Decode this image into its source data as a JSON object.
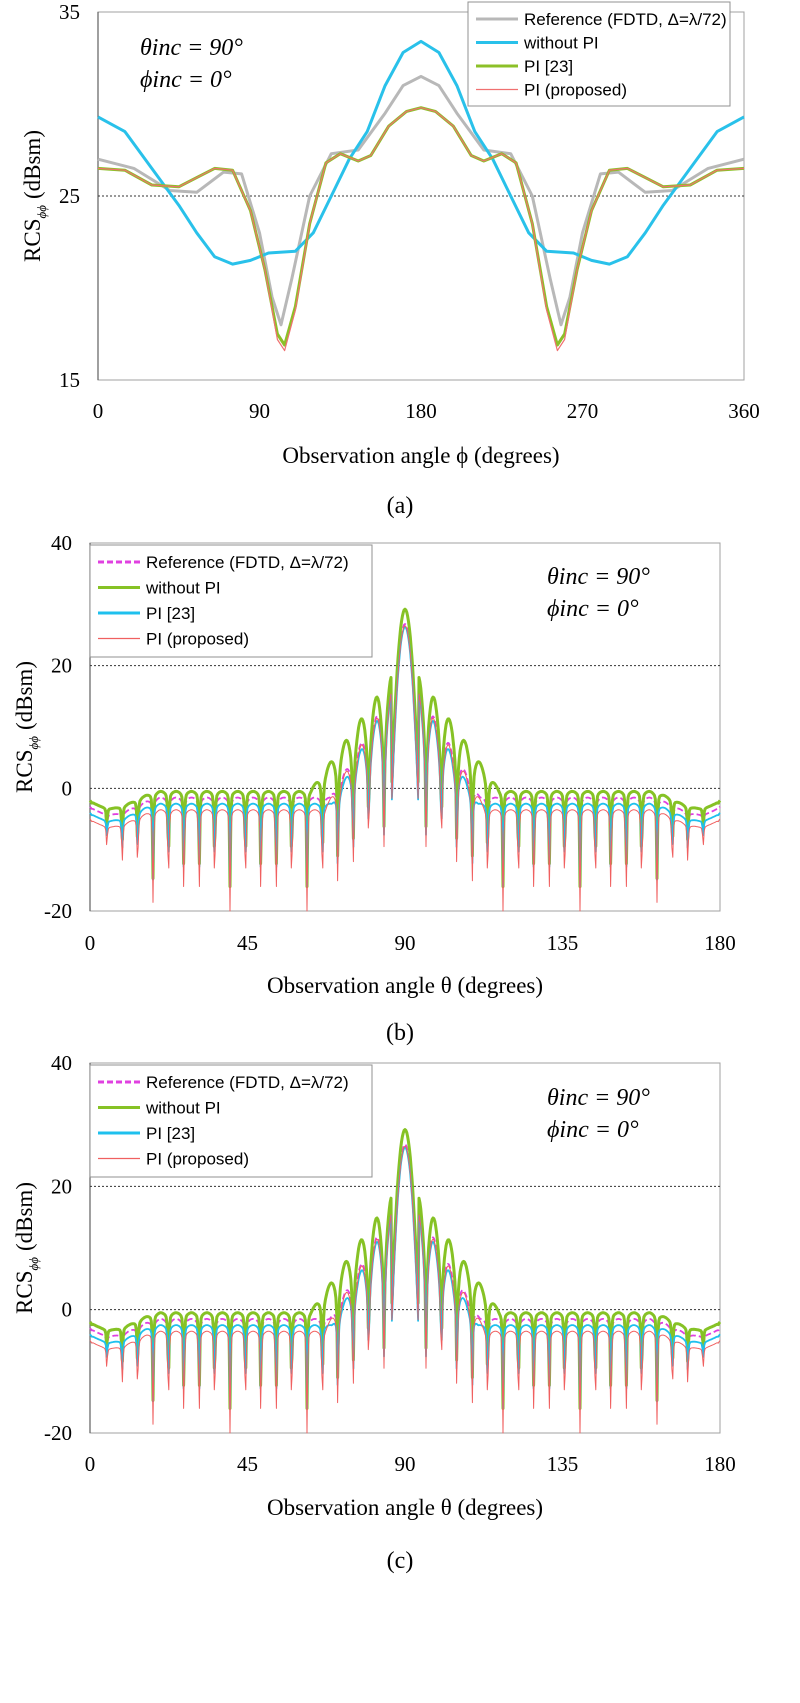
{
  "chart_data": [
    {
      "type": "line",
      "panel_label": "(a)",
      "xlabel": "Observation angle ϕ (degrees)",
      "ylabel": "RCS",
      "ylabel_sub": "ϕϕ",
      "ylabel_unit": "(dBsm)",
      "xlim": [
        0,
        360
      ],
      "ylim": [
        15,
        35
      ],
      "xticks": [
        "0",
        "90",
        "180",
        "270",
        "360"
      ],
      "yticks": [
        "15",
        "25",
        "35"
      ],
      "ref_lines": [
        25
      ],
      "annotation": [
        "θinc = 90°",
        "ϕinc = 0°"
      ],
      "legend_position": "top-right",
      "series": [
        {
          "name": "Reference (FDTD, Δ=λ/72)",
          "color": "#b8b8b8",
          "points": [
            [
              0,
              27.0
            ],
            [
              20,
              26.5
            ],
            [
              40,
              25.3
            ],
            [
              55,
              25.2
            ],
            [
              70,
              26.3
            ],
            [
              80,
              26.2
            ],
            [
              90,
              23.0
            ],
            [
              97,
              19.5
            ],
            [
              102,
              18.0
            ],
            [
              108,
              20.5
            ],
            [
              118,
              25.0
            ],
            [
              130,
              27.3
            ],
            [
              145,
              27.5
            ],
            [
              160,
              29.5
            ],
            [
              170,
              31.0
            ],
            [
              180,
              31.5
            ],
            [
              190,
              31.0
            ],
            [
              200,
              29.5
            ],
            [
              215,
              27.5
            ],
            [
              230,
              27.3
            ],
            [
              242,
              25.0
            ],
            [
              252,
              20.5
            ],
            [
              258,
              18.0
            ],
            [
              263,
              19.5
            ],
            [
              270,
              23.0
            ],
            [
              280,
              26.2
            ],
            [
              290,
              26.3
            ],
            [
              305,
              25.2
            ],
            [
              320,
              25.3
            ],
            [
              340,
              26.5
            ],
            [
              360,
              27.0
            ]
          ]
        },
        {
          "name": "without PI",
          "color": "#29c1ea",
          "points": [
            [
              0,
              29.3
            ],
            [
              15,
              28.5
            ],
            [
              30,
              26.5
            ],
            [
              45,
              24.5
            ],
            [
              55,
              23.0
            ],
            [
              65,
              21.7
            ],
            [
              75,
              21.3
            ],
            [
              85,
              21.5
            ],
            [
              95,
              21.9
            ],
            [
              110,
              22.0
            ],
            [
              120,
              23.0
            ],
            [
              130,
              25.0
            ],
            [
              140,
              27.0
            ],
            [
              150,
              28.5
            ],
            [
              160,
              31.0
            ],
            [
              170,
              32.8
            ],
            [
              180,
              33.4
            ],
            [
              190,
              32.8
            ],
            [
              200,
              31.0
            ],
            [
              210,
              28.5
            ],
            [
              220,
              27.0
            ],
            [
              230,
              25.0
            ],
            [
              240,
              23.0
            ],
            [
              250,
              22.0
            ],
            [
              265,
              21.9
            ],
            [
              275,
              21.5
            ],
            [
              285,
              21.3
            ],
            [
              295,
              21.7
            ],
            [
              305,
              23.0
            ],
            [
              315,
              24.5
            ],
            [
              330,
              26.5
            ],
            [
              345,
              28.5
            ],
            [
              360,
              29.3
            ]
          ]
        },
        {
          "name": "PI [23]",
          "color": "#8cc028",
          "points": [
            [
              0,
              26.5
            ],
            [
              15,
              26.4
            ],
            [
              30,
              25.6
            ],
            [
              45,
              25.5
            ],
            [
              55,
              26.0
            ],
            [
              65,
              26.5
            ],
            [
              75,
              26.4
            ],
            [
              85,
              24.2
            ],
            [
              93,
              21.0
            ],
            [
              100,
              17.5
            ],
            [
              104,
              16.9
            ],
            [
              110,
              19.0
            ],
            [
              118,
              23.5
            ],
            [
              127,
              26.8
            ],
            [
              135,
              27.3
            ],
            [
              145,
              26.9
            ],
            [
              152,
              27.2
            ],
            [
              162,
              28.8
            ],
            [
              172,
              29.6
            ],
            [
              180,
              29.8
            ],
            [
              188,
              29.6
            ],
            [
              198,
              28.8
            ],
            [
              208,
              27.2
            ],
            [
              215,
              26.9
            ],
            [
              225,
              27.3
            ],
            [
              233,
              26.8
            ],
            [
              242,
              23.5
            ],
            [
              250,
              19.0
            ],
            [
              256,
              16.9
            ],
            [
              260,
              17.5
            ],
            [
              267,
              21.0
            ],
            [
              275,
              24.2
            ],
            [
              285,
              26.4
            ],
            [
              295,
              26.5
            ],
            [
              305,
              26.0
            ],
            [
              315,
              25.5
            ],
            [
              330,
              25.6
            ],
            [
              345,
              26.4
            ],
            [
              360,
              26.5
            ]
          ]
        },
        {
          "name": "PI (proposed)",
          "color": "#f07070",
          "points": [
            [
              0,
              26.5
            ],
            [
              15,
              26.4
            ],
            [
              30,
              25.6
            ],
            [
              45,
              25.5
            ],
            [
              55,
              26.0
            ],
            [
              65,
              26.5
            ],
            [
              75,
              26.4
            ],
            [
              85,
              24.2
            ],
            [
              93,
              21.0
            ],
            [
              100,
              17.2
            ],
            [
              104,
              16.6
            ],
            [
              110,
              18.8
            ],
            [
              118,
              23.5
            ],
            [
              127,
              26.8
            ],
            [
              135,
              27.3
            ],
            [
              145,
              26.9
            ],
            [
              152,
              27.2
            ],
            [
              162,
              28.8
            ],
            [
              172,
              29.6
            ],
            [
              180,
              29.8
            ],
            [
              188,
              29.6
            ],
            [
              198,
              28.8
            ],
            [
              208,
              27.2
            ],
            [
              215,
              26.9
            ],
            [
              225,
              27.3
            ],
            [
              233,
              26.8
            ],
            [
              242,
              23.5
            ],
            [
              250,
              18.8
            ],
            [
              256,
              16.6
            ],
            [
              260,
              17.2
            ],
            [
              267,
              21.0
            ],
            [
              275,
              24.2
            ],
            [
              285,
              26.4
            ],
            [
              295,
              26.5
            ],
            [
              305,
              26.0
            ],
            [
              315,
              25.5
            ],
            [
              330,
              25.6
            ],
            [
              345,
              26.4
            ],
            [
              360,
              26.5
            ]
          ]
        }
      ]
    },
    {
      "type": "line",
      "panel_label": "(b)",
      "xlabel": "Observation angle θ (degrees)",
      "ylabel": "RCS",
      "ylabel_sub": "ϕϕ",
      "ylabel_unit": "(dBsm)",
      "xlim": [
        0,
        180
      ],
      "ylim": [
        -20,
        40
      ],
      "xticks": [
        "0",
        "45",
        "90",
        "135",
        "180"
      ],
      "yticks": [
        "-20",
        "0",
        "20",
        "40"
      ],
      "ref_lines": [
        0,
        20
      ],
      "annotation": [
        "θinc = 90°",
        "ϕinc = 0°"
      ],
      "legend_position": "top-left",
      "series": [
        {
          "name": "Reference (FDTD, Δ=λ/72)",
          "color": "#e040e0",
          "dashed": true,
          "base": -3,
          "amp": 26.8,
          "lobeDecay": 1.6,
          "nullDepth": 10
        },
        {
          "name": "without PI",
          "color": "#86c225",
          "base": -2,
          "amp": 29.2,
          "lobeDecay": 1.3,
          "nullDepth": 14
        },
        {
          "name": "PI [23]",
          "color": "#1ec0ee",
          "base": -4,
          "amp": 26.3,
          "lobeDecay": 1.7,
          "nullDepth": 12
        },
        {
          "name": "PI (proposed)",
          "color": "#f06060",
          "base": -5,
          "amp": 26.5,
          "lobeDecay": 1.6,
          "nullDepth": 15
        }
      ]
    },
    {
      "type": "line",
      "panel_label": "(c)",
      "xlabel": "Observation angle θ (degrees)",
      "ylabel": "RCS",
      "ylabel_sub": "ϕϕ",
      "ylabel_unit": "(dBsm)",
      "xlim": [
        0,
        180
      ],
      "ylim": [
        -20,
        40
      ],
      "xticks": [
        "0",
        "45",
        "90",
        "135",
        "180"
      ],
      "yticks": [
        "-20",
        "0",
        "20",
        "40"
      ],
      "ref_lines": [
        0,
        20
      ],
      "annotation": [
        "θinc = 90°",
        "ϕinc = 0°"
      ],
      "legend_position": "top-left",
      "series": [
        {
          "name": "Reference (FDTD, Δ=λ/72)",
          "color": "#e040e0",
          "dashed": true,
          "base": -3,
          "amp": 26.8,
          "lobeDecay": 1.6,
          "nullDepth": 10
        },
        {
          "name": "without PI",
          "color": "#86c225",
          "base": -2,
          "amp": 29.2,
          "lobeDecay": 1.3,
          "nullDepth": 14
        },
        {
          "name": "PI [23]",
          "color": "#1ec0ee",
          "base": -4,
          "amp": 26.3,
          "lobeDecay": 1.7,
          "nullDepth": 12
        },
        {
          "name": "PI (proposed)",
          "color": "#f06060",
          "base": -5,
          "amp": 26.5,
          "lobeDecay": 1.6,
          "nullDepth": 15
        }
      ]
    }
  ]
}
